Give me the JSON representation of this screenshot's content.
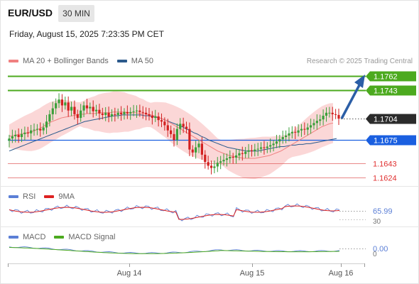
{
  "header": {
    "symbol": "EUR/USD",
    "timeframe": "30 MIN",
    "timestamp": "Friday, August 15, 2025 7:23:35 PM CET",
    "copyright": "Research © 2025 Trading Central"
  },
  "legend_main": [
    {
      "label": "MA 20 + Bollinger Bands",
      "color": "#f08080"
    },
    {
      "label": "MA 50",
      "color": "#2c5a8c"
    }
  ],
  "legend_rsi": [
    {
      "label": "RSI",
      "color": "#5b7fd6"
    },
    {
      "label": "9MA",
      "color": "#dd2222"
    }
  ],
  "legend_macd": [
    {
      "label": "MACD",
      "color": "#5b7fd6"
    },
    {
      "label": "MACD Signal",
      "color": "#4caa1f"
    }
  ],
  "colors": {
    "up_candle": "#3aa03a",
    "down_candle": "#d22020",
    "resistance": "#4caa1f",
    "pivot": "#1a5fe0",
    "support": "#e06060",
    "last_price": "#2b2b2b",
    "arrow": "#2b5ea6",
    "band_fill": "#f9c9c9",
    "ma20": "#f08080",
    "ma50": "#2c5a8c"
  },
  "chart_data": {
    "type": "candlestick",
    "instrument": "EUR/USD",
    "interval": "30 MIN",
    "x_ticks": [
      "Aug 14",
      "Aug 15",
      "Aug 16"
    ],
    "price_range": [
      1.16,
      1.1785
    ],
    "levels": [
      {
        "value": "1.1762",
        "kind": "resistance"
      },
      {
        "value": "1.1743",
        "kind": "resistance"
      },
      {
        "value": "1.1704",
        "kind": "last"
      },
      {
        "value": "1.1675",
        "kind": "pivot"
      },
      {
        "value": "1.1643",
        "kind": "support"
      },
      {
        "value": "1.1624",
        "kind": "support"
      }
    ],
    "close": [
      1.1677,
      1.168,
      1.1682,
      1.1679,
      1.1683,
      1.1685,
      1.1684,
      1.1688,
      1.1689,
      1.169,
      1.1688,
      1.1692,
      1.17,
      1.171,
      1.1718,
      1.1725,
      1.173,
      1.1722,
      1.1726,
      1.1715,
      1.172,
      1.171,
      1.1705,
      1.1715,
      1.1722,
      1.1718,
      1.172,
      1.1714,
      1.1716,
      1.1711,
      1.1709,
      1.1712,
      1.1707,
      1.171,
      1.1709,
      1.1712,
      1.171,
      1.1713,
      1.1711,
      1.1713,
      1.1714,
      1.1715,
      1.1713,
      1.1712,
      1.171,
      1.1708,
      1.1705,
      1.1707,
      1.1702,
      1.17,
      1.1695,
      1.1688,
      1.1683,
      1.1675,
      1.169,
      1.1697,
      1.1693,
      1.169,
      1.1662,
      1.1658,
      1.1665,
      1.167,
      1.1655,
      1.1645,
      1.164,
      1.1637,
      1.1639,
      1.1644,
      1.1646,
      1.1648,
      1.165,
      1.1652,
      1.1651,
      1.1654,
      1.1657,
      1.1656,
      1.1659,
      1.1661,
      1.166,
      1.1662,
      1.1663,
      1.1665,
      1.1664,
      1.1666,
      1.1668,
      1.167,
      1.1673,
      1.1676,
      1.1679,
      1.1681,
      1.1684,
      1.1686,
      1.1685,
      1.1688,
      1.169,
      1.1689,
      1.1692,
      1.1695,
      1.1698,
      1.1701,
      1.1703,
      1.1708,
      1.1712,
      1.1712,
      1.171,
      1.1709,
      1.1704
    ],
    "ma20": [
      1.168,
      1.1681,
      1.1682,
      1.1683,
      1.1684,
      1.1685,
      1.1686,
      1.1688,
      1.169,
      1.1693,
      1.1696,
      1.1699,
      1.1701,
      1.1703,
      1.1705,
      1.1706,
      1.1707,
      1.1708,
      1.1709,
      1.171,
      1.171,
      1.1711,
      1.1711,
      1.1711,
      1.1712,
      1.1712,
      1.1712,
      1.1712,
      1.1713,
      1.1713,
      1.1713,
      1.1713,
      1.1712,
      1.1712,
      1.1712,
      1.1711,
      1.1711,
      1.171,
      1.1709,
      1.1708,
      1.1706,
      1.1704,
      1.1702,
      1.1699,
      1.1696,
      1.1693,
      1.169,
      1.1687,
      1.1684,
      1.1681,
      1.1678,
      1.1675,
      1.1672,
      1.1669,
      1.1666,
      1.1663,
      1.166,
      1.1658,
      1.1656,
      1.1654,
      1.1653,
      1.1652,
      1.1651,
      1.165,
      1.165,
      1.165,
      1.165,
      1.1651,
      1.1652,
      1.1653,
      1.1654,
      1.1656,
      1.1658,
      1.166,
      1.1663,
      1.1666,
      1.1669,
      1.1672,
      1.1675,
      1.1678,
      1.1681,
      1.1684,
      1.1687,
      1.169,
      1.1693,
      1.1695,
      1.1697,
      1.1698
    ],
    "ma50": [
      1.166,
      1.1662,
      1.1664,
      1.1666,
      1.1668,
      1.167,
      1.1672,
      1.1674,
      1.1676,
      1.1678,
      1.168,
      1.1682,
      1.1684,
      1.1686,
      1.1688,
      1.169,
      1.1692,
      1.1694,
      1.1696,
      1.1698,
      1.17,
      1.1701,
      1.1702,
      1.1703,
      1.1704,
      1.1705,
      1.1706,
      1.1707,
      1.1708,
      1.1708,
      1.1709,
      1.1709,
      1.1709,
      1.1709,
      1.1709,
      1.1709,
      1.1708,
      1.1708,
      1.1707,
      1.1706,
      1.1705,
      1.1703,
      1.1701,
      1.1699,
      1.1697,
      1.1695,
      1.1693,
      1.169,
      1.1688,
      1.1685,
      1.1683,
      1.168,
      1.1678,
      1.1675,
      1.1673,
      1.1671,
      1.1669,
      1.1667,
      1.1665,
      1.1664,
      1.1663,
      1.1662,
      1.1661,
      1.166,
      1.166,
      1.166,
      1.166,
      1.1661,
      1.1662,
      1.1663,
      1.1664,
      1.1665,
      1.1666,
      1.1666,
      1.1667,
      1.1668,
      1.1668,
      1.1669,
      1.1669,
      1.167,
      1.167,
      1.1671,
      1.1672,
      1.1673,
      1.1674,
      1.1675,
      1.1676,
      1.1677
    ],
    "rsi_value": "65.99",
    "rsi_ticks": [
      "30"
    ],
    "macd_value": "0.00",
    "macd_ticks": [
      "0"
    ]
  }
}
